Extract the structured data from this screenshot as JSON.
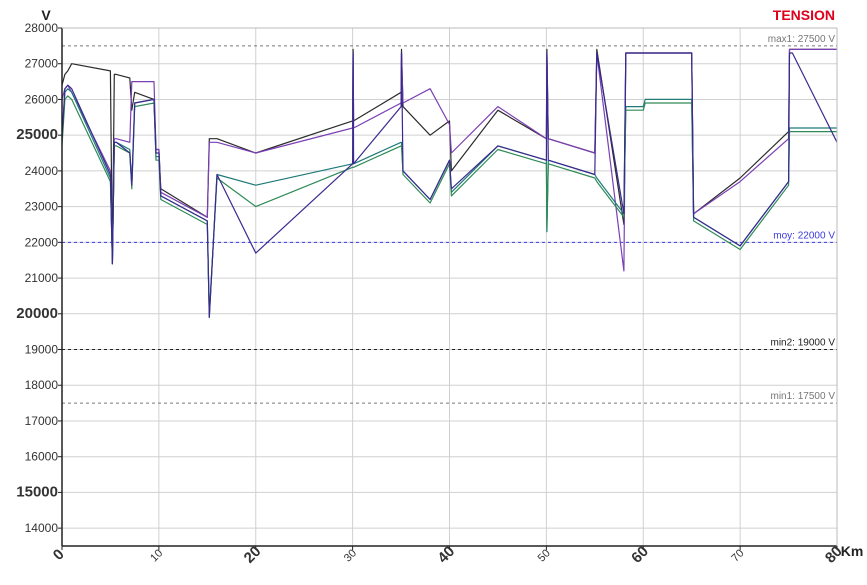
{
  "chart_data": {
    "type": "line",
    "title": "TENSION",
    "title_color": "#e0001b",
    "ylabel": "V",
    "xlabel": "Km",
    "xlim": [
      0,
      80
    ],
    "ylim": [
      13500,
      28000
    ],
    "grid": true,
    "x_ticks": [
      0,
      10,
      20,
      30,
      40,
      50,
      60,
      70,
      80
    ],
    "y_ticks": [
      14000,
      15000,
      16000,
      17000,
      18000,
      19000,
      20000,
      21000,
      22000,
      23000,
      24000,
      25000,
      26000,
      27000,
      28000
    ],
    "y_ticks_bold": [
      15000,
      20000,
      25000
    ],
    "x_ticks_bold": [
      0,
      20,
      40,
      60,
      80
    ],
    "reference_lines": [
      {
        "label": "max1: 27500 V",
        "value": 27500,
        "color": "#777777"
      },
      {
        "label": "moy: 22000 V",
        "value": 22000,
        "color": "#3b3be0"
      },
      {
        "label": "min2: 19000 V",
        "value": 19000,
        "color": "#222222"
      },
      {
        "label": "min1: 17500 V",
        "value": 17500,
        "color": "#777777"
      }
    ],
    "series": [
      {
        "color": "#2b2b2b",
        "x": [
          0,
          0.3,
          0.6,
          1,
          5,
          5.2,
          5.4,
          5.6,
          7,
          7.2,
          7.5,
          9.5,
          9.7,
          10,
          10.2,
          15,
          15.2,
          16,
          20,
          30,
          30.05,
          30.1,
          35,
          35.05,
          35.2,
          38,
          40,
          40.2,
          45,
          50,
          50.05,
          50.2,
          55,
          55.2,
          58,
          58.2,
          60,
          60.2,
          65,
          65.2,
          70,
          75,
          75.1,
          75.4,
          80
        ],
        "y": [
          26400,
          26700,
          26800,
          27000,
          26800,
          21400,
          26700,
          26700,
          26600,
          25700,
          26200,
          26000,
          24600,
          24600,
          23500,
          22700,
          24900,
          24900,
          24500,
          25400,
          27400,
          25400,
          26200,
          27400,
          25800,
          25000,
          25400,
          24000,
          25700,
          24900,
          27400,
          24900,
          24500,
          27400,
          22500,
          27300,
          27300,
          27300,
          27300,
          22800,
          23800,
          25100,
          27400,
          27400,
          27400
        ]
      },
      {
        "color": "#7b3fb5",
        "x": [
          0,
          0.3,
          0.6,
          1,
          5,
          5.2,
          5.4,
          5.6,
          7,
          7.2,
          7.5,
          9.5,
          9.7,
          10,
          10.2,
          15,
          15.2,
          16,
          20,
          30,
          30.05,
          30.1,
          35,
          35.05,
          35.2,
          38,
          40,
          40.2,
          45,
          50,
          50.05,
          50.2,
          55,
          55.2,
          58,
          58.2,
          60,
          60.2,
          65,
          65.2,
          70,
          75,
          75.1,
          75.4,
          80
        ],
        "y": [
          26000,
          26300,
          26400,
          26200,
          24000,
          21500,
          24900,
          24900,
          24800,
          26500,
          26500,
          26500,
          24600,
          24600,
          23400,
          22700,
          24800,
          24800,
          24500,
          25200,
          27300,
          25200,
          25900,
          27300,
          25900,
          26300,
          25300,
          24500,
          25800,
          24900,
          27300,
          24900,
          24500,
          27300,
          21200,
          27300,
          27300,
          27300,
          27300,
          22800,
          23700,
          24900,
          27400,
          27400,
          27400
        ]
      },
      {
        "color": "#1f7a7a",
        "x": [
          0,
          0.3,
          0.6,
          1,
          5,
          5.2,
          5.4,
          5.6,
          7,
          7.2,
          7.5,
          9.5,
          9.7,
          10,
          10.2,
          15,
          15.2,
          16,
          20,
          30,
          30.05,
          30.1,
          35,
          35.05,
          35.2,
          38,
          40,
          40.2,
          45,
          50,
          50.05,
          50.2,
          55,
          55.2,
          58,
          58.2,
          60,
          60.2,
          65,
          65.2,
          70,
          75,
          75.1,
          75.4,
          80
        ],
        "y": [
          25000,
          26200,
          26300,
          26200,
          23800,
          21400,
          24800,
          24800,
          24600,
          23600,
          25900,
          26000,
          24400,
          24400,
          23300,
          22600,
          19900,
          23900,
          23600,
          24200,
          24200,
          24200,
          24800,
          24800,
          24000,
          23200,
          24300,
          23400,
          24700,
          24300,
          22300,
          24300,
          23900,
          23800,
          22800,
          25800,
          25800,
          26000,
          26000,
          22700,
          21900,
          23700,
          25200,
          25200,
          25200
        ]
      },
      {
        "color": "#2e8b57",
        "x": [
          0,
          0.3,
          0.6,
          1,
          5,
          5.2,
          5.4,
          5.6,
          7,
          7.2,
          7.5,
          9.5,
          9.7,
          10,
          10.2,
          15,
          15.2,
          16,
          20,
          30,
          30.05,
          30.1,
          35,
          35.05,
          35.2,
          38,
          40,
          40.2,
          45,
          50,
          50.05,
          50.2,
          55,
          55.2,
          58,
          58.2,
          60,
          60.2,
          65,
          65.2,
          70,
          75,
          75.1,
          75.4,
          80
        ],
        "y": [
          24700,
          26000,
          26100,
          26000,
          23700,
          21500,
          24700,
          24700,
          24500,
          23500,
          25800,
          25900,
          24300,
          24300,
          23200,
          22500,
          20000,
          23800,
          23000,
          24100,
          24100,
          24100,
          24700,
          24700,
          23900,
          23100,
          24200,
          23300,
          24600,
          24200,
          22400,
          24200,
          23800,
          23700,
          22700,
          25700,
          25700,
          25900,
          25900,
          22600,
          21800,
          23600,
          25100,
          25100,
          25100
        ]
      },
      {
        "color": "#3a2a8f",
        "x": [
          0,
          0.3,
          0.6,
          1,
          5,
          5.2,
          5.4,
          5.6,
          7,
          7.2,
          7.5,
          9.5,
          9.7,
          10,
          10.2,
          15,
          15.2,
          16,
          20,
          30,
          30.05,
          30.1,
          35,
          35.05,
          35.2,
          38,
          40,
          40.2,
          45,
          50,
          50.05,
          50.2,
          55,
          55.2,
          58,
          58.2,
          60,
          60.2,
          65,
          65.2,
          70,
          75,
          75.1,
          75.4,
          80
        ],
        "y": [
          24900,
          26300,
          26400,
          26300,
          23900,
          21400,
          24800,
          24800,
          24500,
          23600,
          25900,
          26000,
          24500,
          24500,
          23300,
          22600,
          19900,
          23900,
          21700,
          24200,
          27300,
          24200,
          25800,
          27300,
          24000,
          23200,
          24300,
          23500,
          24700,
          24300,
          27300,
          24300,
          23900,
          27300,
          22800,
          27300,
          27300,
          27300,
          27300,
          22700,
          21900,
          23700,
          27300,
          27300,
          24800
        ]
      }
    ]
  }
}
